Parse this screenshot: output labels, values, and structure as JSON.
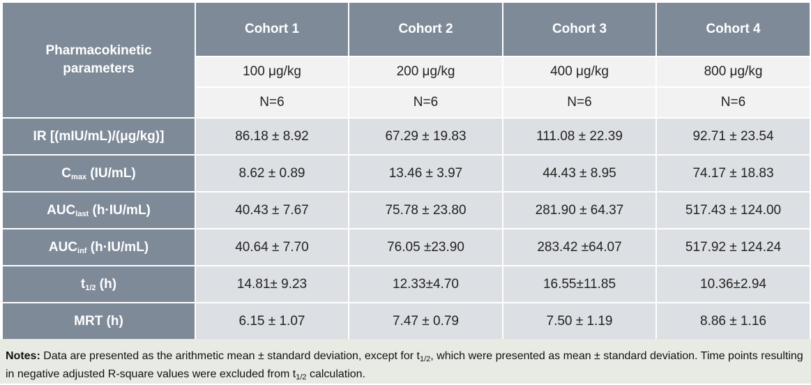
{
  "header": {
    "param_label": "Pharmacokinetic parameters",
    "cohorts": [
      {
        "name": "Cohort 1",
        "dose": "100 μg/kg",
        "n": "N=6"
      },
      {
        "name": "Cohort 2",
        "dose": "200 μg/kg",
        "n": "N=6"
      },
      {
        "name": "Cohort 3",
        "dose": "400 μg/kg",
        "n": "N=6"
      },
      {
        "name": "Cohort 4",
        "dose": "800 μg/kg",
        "n": "N=6"
      }
    ]
  },
  "rows": [
    {
      "label": "IR [(mIU/mL)/(μg/kg)]",
      "values": [
        "86.18 ± 8.92",
        "67.29 ± 19.83",
        "111.08 ± 22.39",
        "92.71 ± 23.54"
      ]
    },
    {
      "label_main": "C",
      "label_sub": "max",
      "label_rest": " (IU/mL)",
      "values": [
        "8.62 ± 0.89",
        "13.46 ± 3.97",
        "44.43 ± 8.95",
        "74.17 ± 18.83"
      ]
    },
    {
      "label_main": "AUC",
      "label_sub": "last",
      "label_rest": " (h·IU/mL)",
      "values": [
        "40.43 ± 7.67",
        "75.78 ± 23.80",
        "281.90 ± 64.37",
        "517.43 ± 124.00"
      ]
    },
    {
      "label_main": "AUC",
      "label_sub": "inf",
      "label_rest": " (h·IU/mL)",
      "values": [
        "40.64 ± 7.70",
        "76.05 ±23.90",
        "283.42 ±64.07",
        "517.92 ± 124.24"
      ]
    },
    {
      "label_main": "t",
      "label_sub": "1/2",
      "label_rest": " (h)",
      "values": [
        "14.81± 9.23",
        "12.33±4.70",
        "16.55±11.85",
        "10.36±2.94"
      ]
    },
    {
      "label": "MRT (h)",
      "values": [
        "6.15 ± 1.07",
        "7.47 ± 0.79",
        "7.50 ± 1.19",
        "8.86 ± 1.16"
      ]
    }
  ],
  "notes": {
    "lead": "Notes:",
    "text1": " Data are presented as the arithmetic mean ± standard deviation, except for t",
    "sub1": "1/2",
    "text2": ", which were presented as mean ± standard deviation. Time points resulting in negative adjusted R-square values were excluded from t",
    "sub2": "1/2",
    "text3": " calculation."
  }
}
